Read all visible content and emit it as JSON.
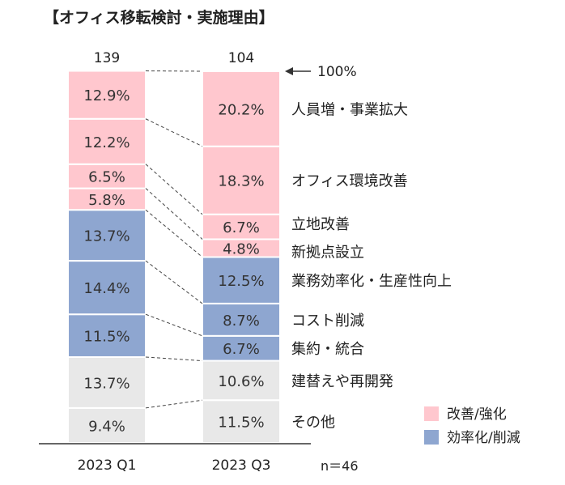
{
  "chart_data": {
    "type": "bar",
    "stacked": true,
    "normalized": true,
    "title": "【オフィス移転検討・実施理由】",
    "categories": [
      "2023 Q1",
      "2023 Q3"
    ],
    "totals": [
      "139",
      "104"
    ],
    "total_marker": "100%",
    "n_label": "n＝46",
    "ylim": [
      0,
      100
    ],
    "series": [
      {
        "name": "その他",
        "group": "other",
        "values": [
          9.4,
          11.5
        ]
      },
      {
        "name": "建替えや再開発",
        "group": "other",
        "values": [
          13.7,
          10.6
        ]
      },
      {
        "name": "集約・統合",
        "group": "improve",
        "values": [
          11.5,
          6.7
        ]
      },
      {
        "name": "コスト削減",
        "group": "improve",
        "values": [
          14.4,
          8.7
        ]
      },
      {
        "name": "業務効率化・生産性向上",
        "group": "improve",
        "values": [
          13.7,
          12.5
        ]
      },
      {
        "name": "新拠点設立",
        "group": "enhance",
        "values": [
          5.8,
          4.8
        ]
      },
      {
        "name": "立地改善",
        "group": "enhance",
        "values": [
          6.5,
          6.7
        ]
      },
      {
        "name": "オフィス環境改善",
        "group": "enhance",
        "values": [
          12.2,
          18.3
        ]
      },
      {
        "name": "人員増・事業拡大",
        "group": "enhance",
        "values": [
          12.9,
          20.2
        ]
      }
    ],
    "legend": [
      {
        "label": "改善/強化",
        "group": "enhance"
      },
      {
        "label": "効率化/削減",
        "group": "improve"
      }
    ],
    "colors": {
      "enhance": "#ffc7ce",
      "improve": "#8ea6d0",
      "other": "#e8e8e8",
      "outline": "#ffffff",
      "axis": "#333333",
      "text": "#222222"
    }
  }
}
